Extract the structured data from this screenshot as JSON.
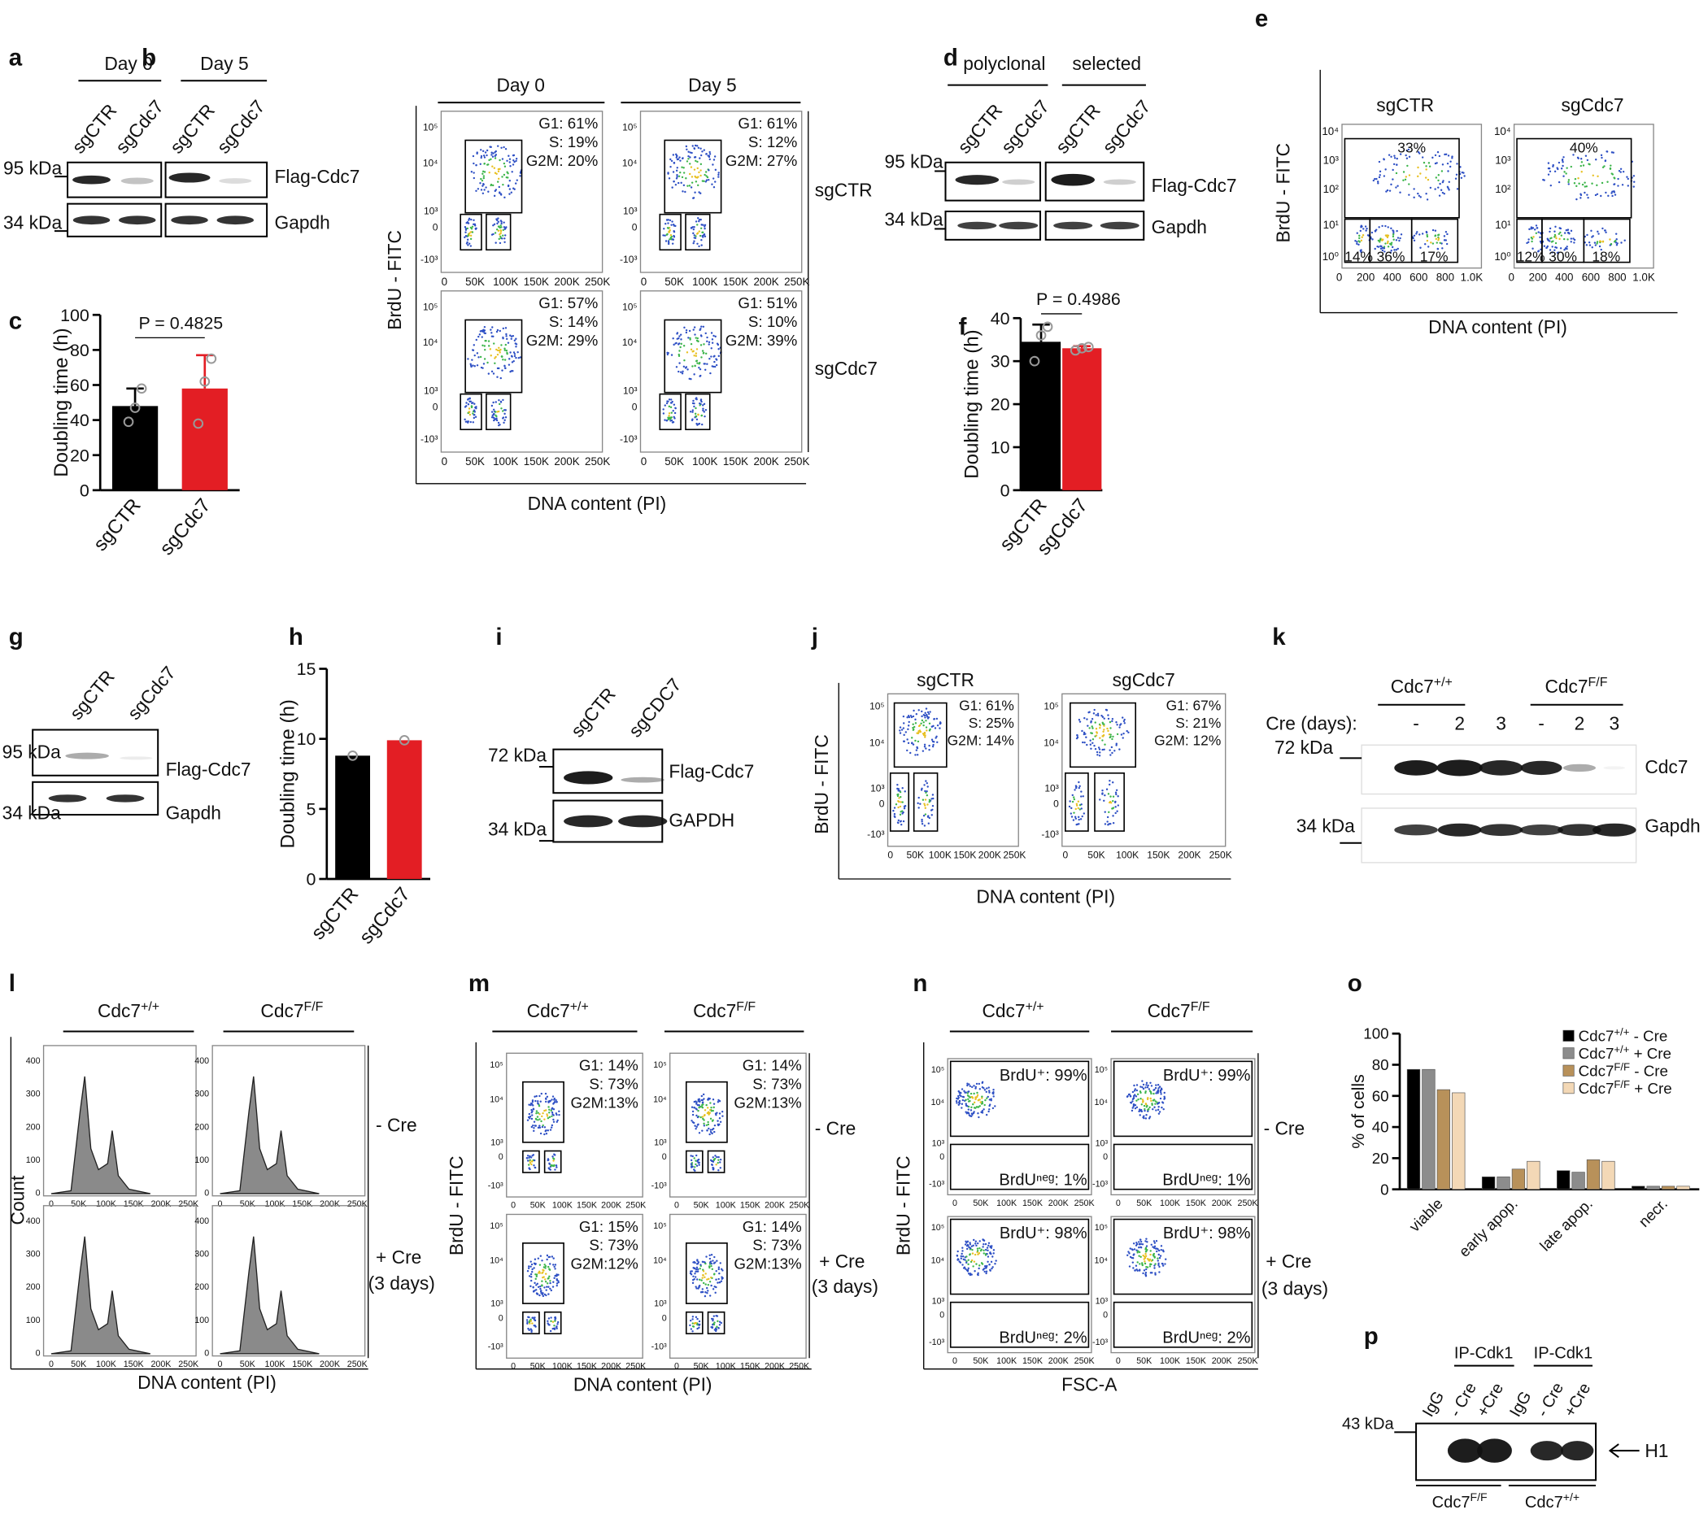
{
  "a": {
    "label": "a",
    "groups": [
      "Day 0",
      "Day 5"
    ],
    "lanes": [
      "sgCTR",
      "sgCdc7",
      "sgCTR",
      "sgCdc7"
    ],
    "markers": [
      "95 kDa",
      "34 kDa"
    ],
    "bands": [
      "Flag-Cdc7",
      "Gapdh"
    ]
  },
  "b": {
    "label": "b",
    "columns": [
      "Day 0",
      "Day 5"
    ],
    "rows": [
      "sgCTR",
      "sgCdc7"
    ],
    "stats": [
      [
        "G1: 61%",
        "S: 19%",
        "G2M: 20%"
      ],
      [
        "G1: 61%",
        "S: 12%",
        "G2M: 27%"
      ],
      [
        "G1: 57%",
        "S: 14%",
        "G2M: 29%"
      ],
      [
        "G1: 51%",
        "S: 10%",
        "G2M: 39%"
      ]
    ],
    "xticks": [
      "0",
      "50K",
      "100K",
      "150K",
      "200K",
      "250K"
    ],
    "yticks": [
      "10⁵",
      "10⁴",
      "10³",
      "0",
      "-10³"
    ],
    "y_label": "BrdU - FITC",
    "x_label": "DNA content (PI)"
  },
  "d": {
    "label": "d",
    "groups": [
      "polyclonal",
      "selected"
    ],
    "lanes": [
      "sgCTR",
      "sgCdc7",
      "sgCTR",
      "sgCdc7"
    ],
    "markers": [
      "95 kDa",
      "34 kDa"
    ],
    "bands": [
      "Flag-Cdc7",
      "Gapdh"
    ]
  },
  "e": {
    "label": "e",
    "columns": [
      "sgCTR",
      "sgCdc7"
    ],
    "top_gates": [
      "33%",
      "40%"
    ],
    "bottom_gates": [
      [
        "14%",
        "36%",
        "17%"
      ],
      [
        "12%",
        "30%",
        "18%"
      ]
    ],
    "xticks": [
      "0",
      "200",
      "400",
      "600",
      "800",
      "1.0K"
    ],
    "yticks": [
      "10⁴",
      "10³",
      "10²",
      "10¹",
      "10⁰"
    ],
    "y_label": "BrdU - FITC",
    "x_label": "DNA content (PI)"
  },
  "g": {
    "label": "g",
    "lanes": [
      "sgCTR",
      "sgCdc7"
    ],
    "markers": [
      "95 kDa",
      "34 kDa"
    ],
    "bands": [
      "Flag-Cdc7",
      "Gapdh"
    ]
  },
  "i": {
    "label": "i",
    "lanes": [
      "sgCTR",
      "sgCDC7"
    ],
    "markers": [
      "72 kDa",
      "34 kDa"
    ],
    "bands": [
      "Flag-Cdc7",
      "GAPDH"
    ]
  },
  "j": {
    "label": "j",
    "columns": [
      "sgCTR",
      "sgCdc7"
    ],
    "stats": [
      [
        "G1: 61%",
        "S: 25%",
        "G2M: 14%"
      ],
      [
        "G1: 67%",
        "S: 21%",
        "G2M: 12%"
      ]
    ],
    "xticks": [
      "0",
      "50K",
      "100K",
      "150K",
      "200K",
      "250K"
    ],
    "yticks": [
      "10⁵",
      "10⁴",
      "10³",
      "0",
      "-10³"
    ],
    "y_label": "BrdU - FITC",
    "x_label": "DNA content (PI)"
  },
  "k": {
    "label": "k",
    "groups": [
      {
        "base": "Cdc7",
        "sup": "+/+"
      },
      {
        "base": "Cdc7",
        "sup": "F/F"
      }
    ],
    "cre_label": "Cre (days):",
    "lanes": [
      "-",
      "2",
      "3",
      "-",
      "2",
      "3"
    ],
    "markers": [
      "72 kDa",
      "34 kDa"
    ],
    "bands": [
      "Cdc7",
      "Gapdh"
    ]
  },
  "l": {
    "label": "l",
    "columns": [
      {
        "base": "Cdc7",
        "sup": "+/+"
      },
      {
        "base": "Cdc7",
        "sup": "F/F"
      }
    ],
    "rows": [
      [
        "- Cre"
      ],
      [
        "+ Cre",
        "(3 days)"
      ]
    ],
    "xticks": [
      "0",
      "50K",
      "100K",
      "150K",
      "200K",
      "250K"
    ],
    "yticks": [
      "0",
      "100",
      "200",
      "300",
      "400"
    ],
    "y_label": "Count",
    "x_label": "DNA content (PI)"
  },
  "m": {
    "label": "m",
    "columns": [
      {
        "base": "Cdc7",
        "sup": "+/+"
      },
      {
        "base": "Cdc7",
        "sup": "F/F"
      }
    ],
    "rows": [
      [
        "- Cre"
      ],
      [
        "+ Cre",
        "(3 days)"
      ]
    ],
    "stats": [
      [
        "G1: 14%",
        "S: 73%",
        "G2M:13%"
      ],
      [
        "G1: 14%",
        "S: 73%",
        "G2M:13%"
      ],
      [
        "G1: 15%",
        "S: 73%",
        "G2M:12%"
      ],
      [
        "G1: 14%",
        "S: 73%",
        "G2M:13%"
      ]
    ],
    "xticks": [
      "0",
      "50K",
      "100K",
      "150K",
      "200K",
      "250K"
    ],
    "yticks": [
      "10⁵",
      "10⁴",
      "10³",
      "0",
      "-10³"
    ],
    "y_label": "BrdU - FITC",
    "x_label": "DNA content (PI)"
  },
  "n": {
    "label": "n",
    "columns": [
      {
        "base": "Cdc7",
        "sup": "+/+"
      },
      {
        "base": "Cdc7",
        "sup": "F/F"
      }
    ],
    "rows": [
      [
        "- Cre"
      ],
      [
        "+ Cre",
        "(3 days)"
      ]
    ],
    "stats": [
      [
        "BrdU⁺: 99%",
        "BrdUⁿᵉᵍ: 1%"
      ],
      [
        "BrdU⁺: 99%",
        "BrdUⁿᵉᵍ: 1%"
      ],
      [
        "BrdU⁺: 98%",
        "BrdUⁿᵉᵍ: 2%"
      ],
      [
        "BrdU⁺: 98%",
        "BrdUⁿᵉᵍ: 2%"
      ]
    ],
    "xticks": [
      "0",
      "50K",
      "100K",
      "150K",
      "200K",
      "250K"
    ],
    "yticks": [
      "10⁵",
      "10⁴",
      "10³",
      "0",
      "-10³"
    ],
    "y_label": "BrdU - FITC",
    "x_label": "FSC-A"
  },
  "p": {
    "label": "p",
    "ip_groups": [
      "IP-Cdk1",
      "IP-Cdk1"
    ],
    "lanes": [
      "IgG",
      "- Cre",
      "+Cre",
      "IgG",
      "- Cre",
      "+Cre"
    ],
    "marker": "43 kDa",
    "band": "H1",
    "genotypes": [
      {
        "base": "Cdc7",
        "sup": "F/F"
      },
      {
        "base": "Cdc7",
        "sup": "+/+"
      }
    ]
  },
  "chart_data": [
    {
      "type": "bar",
      "panel_label": "c",
      "y_label": "Doubling time (h)",
      "categories": [
        "sgCTR",
        "sgCdc7"
      ],
      "values": [
        48,
        58
      ],
      "errors": [
        10,
        19
      ],
      "points": [
        [
          39,
          47,
          58
        ],
        [
          38,
          62,
          75
        ]
      ],
      "colors": [
        "#000000",
        "#e31e24"
      ],
      "ylim": [
        0,
        100
      ],
      "yticks": [
        0,
        20,
        40,
        60,
        80,
        100
      ],
      "annotation": "P = 0.4825"
    },
    {
      "type": "bar",
      "panel_label": "f",
      "y_label": "Doubling time (h)",
      "categories": [
        "sgCTR",
        "sgCdc7"
      ],
      "values": [
        34.5,
        33
      ],
      "errors": [
        4,
        0.5
      ],
      "points": [
        [
          30,
          36,
          38
        ],
        [
          32.5,
          33,
          33.3
        ]
      ],
      "colors": [
        "#000000",
        "#e31e24"
      ],
      "ylim": [
        0,
        40
      ],
      "yticks": [
        0,
        10,
        20,
        30,
        40
      ],
      "annotation": "P = 0.4986"
    },
    {
      "type": "bar",
      "panel_label": "h",
      "y_label": "Doubling time (h)",
      "categories": [
        "sgCTR",
        "sgCdc7"
      ],
      "values": [
        8.8,
        9.9
      ],
      "points": [
        [
          8.8
        ],
        [
          9.9
        ]
      ],
      "colors": [
        "#000000",
        "#e31e24"
      ],
      "ylim": [
        0,
        15
      ],
      "yticks": [
        0,
        5,
        10,
        15
      ]
    },
    {
      "type": "grouped-bar",
      "panel_label": "o",
      "y_label": "% of cells",
      "categories": [
        "viable",
        "early apop.",
        "late apop.",
        "necr."
      ],
      "series": [
        {
          "name": {
            "base": "Cdc7",
            "sup": "+/+",
            "rest": " - Cre"
          },
          "color": "#000000",
          "values": [
            77,
            8,
            12,
            2
          ]
        },
        {
          "name": {
            "base": "Cdc7",
            "sup": "+/+",
            "rest": " + Cre"
          },
          "color": "#8c8c8c",
          "values": [
            77,
            8,
            11,
            2
          ]
        },
        {
          "name": {
            "base": "Cdc7",
            "sup": "F/F",
            "rest": " - Cre"
          },
          "color": "#b8915a",
          "values": [
            64,
            13,
            19,
            2
          ]
        },
        {
          "name": {
            "base": "Cdc7",
            "sup": "F/F",
            "rest": " + Cre"
          },
          "color": "#f3d8b6",
          "values": [
            62,
            18,
            18,
            2
          ]
        }
      ],
      "ylim": [
        0,
        100
      ],
      "yticks": [
        0,
        20,
        40,
        60,
        80,
        100
      ]
    }
  ]
}
